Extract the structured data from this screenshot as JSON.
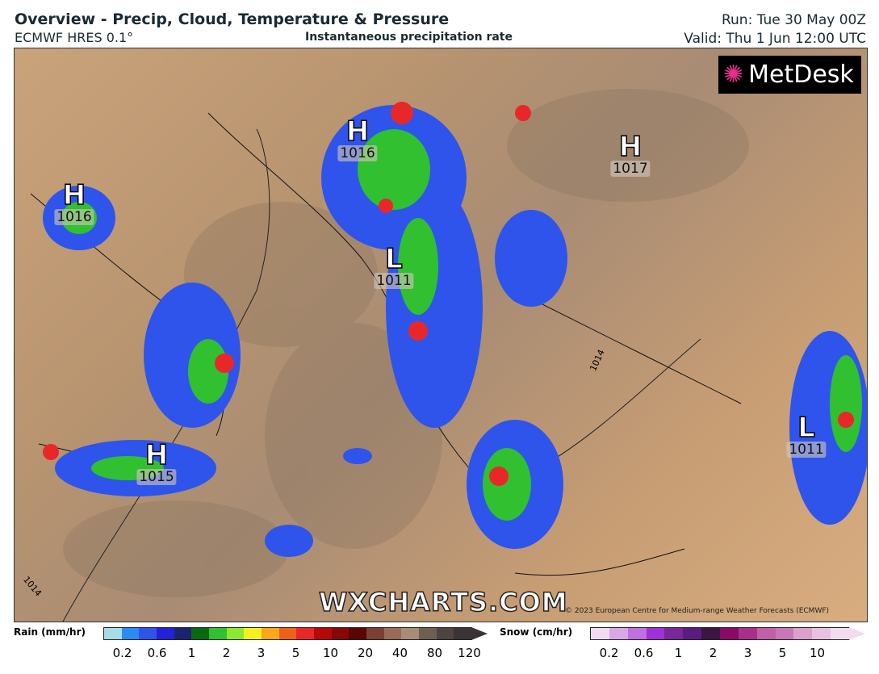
{
  "header": {
    "title": "Overview - Precip, Cloud, Temperature & Pressure",
    "model": "ECMWF HRES 0.1°",
    "subtitle": "Instantaneous precipitation rate",
    "run": "Run: Tue 30 May 00Z",
    "valid": "Valid: Thu 1 Jun 12:00 UTC"
  },
  "map": {
    "pressure_centres": [
      {
        "type": "H",
        "value": "1016"
      },
      {
        "type": "H",
        "value": "1016"
      },
      {
        "type": "H",
        "value": "1017"
      },
      {
        "type": "L",
        "value": "1011"
      },
      {
        "type": "L",
        "value": "1011"
      },
      {
        "type": "H",
        "value": "1015"
      }
    ],
    "isobar_labels": [
      "1014",
      "1014"
    ],
    "watermark": "WXCHARTS.COM",
    "copyright": "© 2023 European Centre for Medium-range Weather Forecasts (ECMWF)",
    "logo": "MetDesk"
  },
  "legend": {
    "rain": {
      "label": "Rain (mm/hr)",
      "ticks": [
        "0.2",
        "0.6",
        "1",
        "2",
        "3",
        "5",
        "10",
        "20",
        "40",
        "80",
        "120"
      ],
      "colors": [
        "#a8dce4",
        "#2a8cf0",
        "#2f54ec",
        "#2222d8",
        "#1a2470",
        "#0a6a10",
        "#30c030",
        "#8ee830",
        "#f6f020",
        "#f8a818",
        "#f06018",
        "#e82828",
        "#b80808",
        "#880808",
        "#5a0606",
        "#7a4034",
        "#9a6a58",
        "#a88c78",
        "#6e6050",
        "#4e4440",
        "#3a3436"
      ]
    },
    "snow": {
      "label": "Snow (cm/hr)",
      "ticks": [
        "0.2",
        "0.6",
        "1",
        "2",
        "3",
        "5",
        "10"
      ],
      "colors": [
        "#f0dcf0",
        "#d8a8e4",
        "#c070e0",
        "#a030d8",
        "#782898",
        "#5a1c80",
        "#3a1640",
        "#8a0a68",
        "#a8308c",
        "#c060a8",
        "#c878b8",
        "#dca0cc",
        "#e8c0e0",
        "#f2dcf0"
      ]
    }
  }
}
